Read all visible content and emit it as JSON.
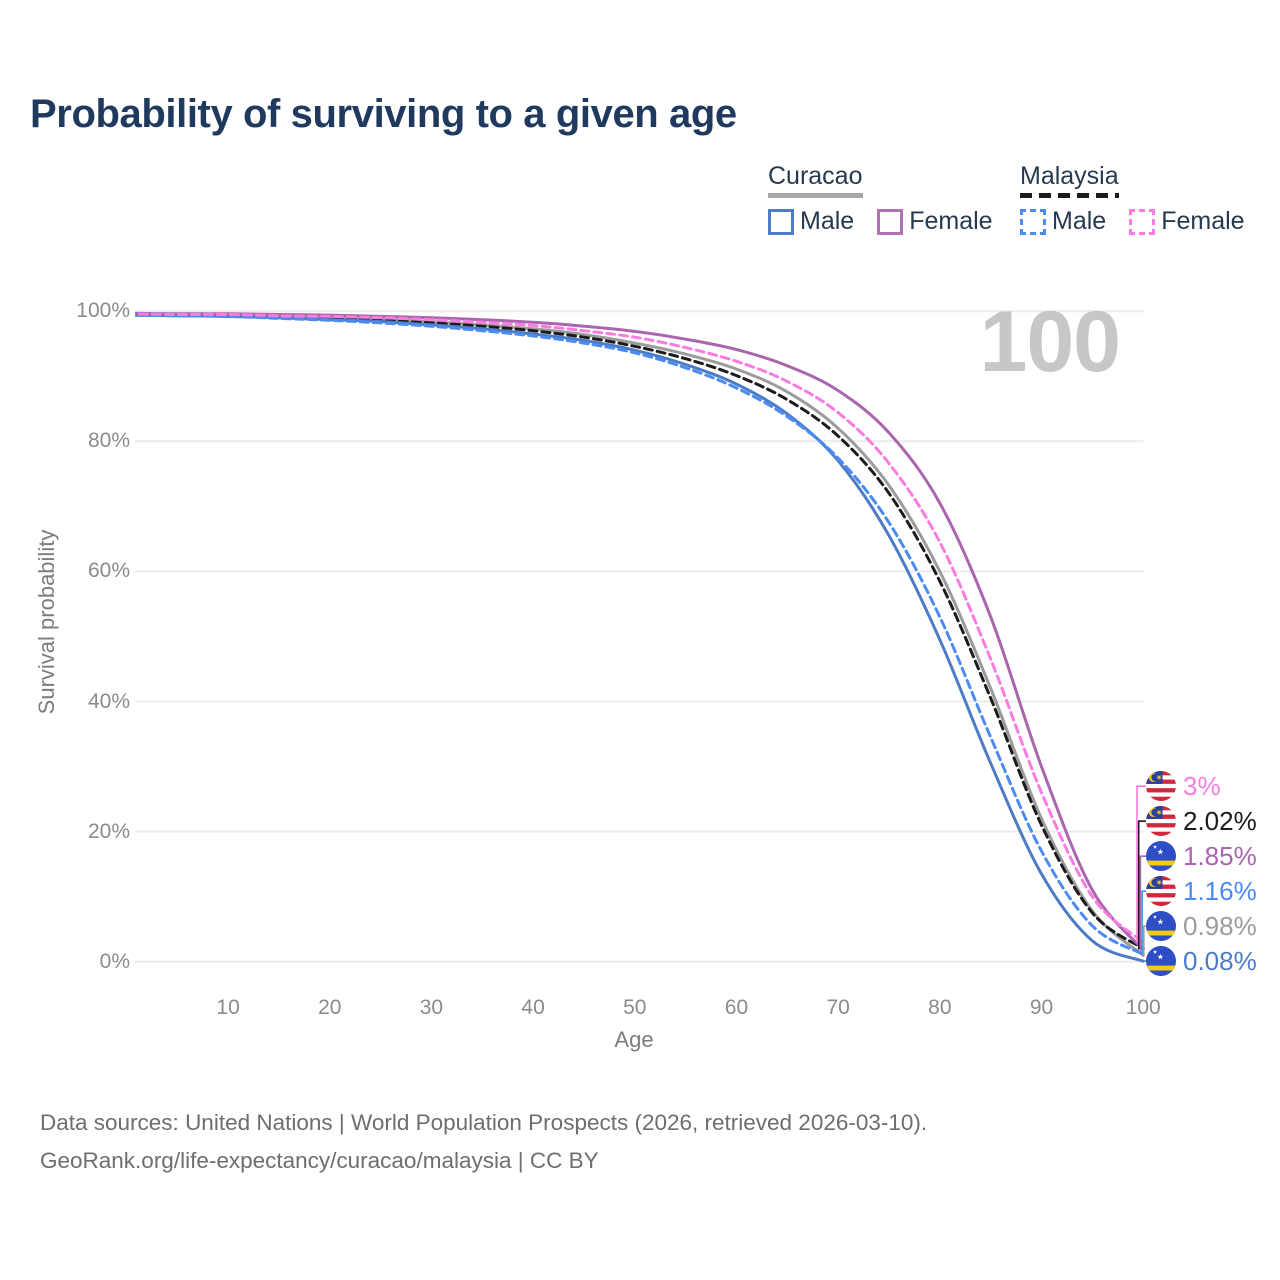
{
  "title": "Probability of surviving to a given age",
  "watermark": "100",
  "legend": {
    "position": "top-right",
    "groups": [
      {
        "name": "Curacao",
        "line_style": "solid",
        "underline_color": "#a8a8a8",
        "items": [
          {
            "label": "Male",
            "color": "#4d7cc7",
            "dashed": false
          },
          {
            "label": "Female",
            "color": "#b172b3",
            "dashed": false
          }
        ]
      },
      {
        "name": "Malaysia",
        "line_style": "dashed",
        "underline_color": "#1b1b1b",
        "items": [
          {
            "label": "Male",
            "color": "#4b8bf2",
            "dashed": true
          },
          {
            "label": "Female",
            "color": "#fb7ce1",
            "dashed": true
          }
        ]
      }
    ]
  },
  "chart_data": {
    "type": "line",
    "title": "Probability of surviving to a given age",
    "xlabel": "Age",
    "ylabel": "Survival probability",
    "xlim": [
      0,
      100
    ],
    "ylim": [
      0,
      100
    ],
    "grid": "horizontal",
    "x_ticks": [
      10,
      20,
      30,
      40,
      50,
      60,
      70,
      80,
      90,
      100
    ],
    "y_ticks": [
      {
        "value": 0,
        "label": "0%"
      },
      {
        "value": 20,
        "label": "20%"
      },
      {
        "value": 40,
        "label": "40%"
      },
      {
        "value": 60,
        "label": "60%"
      },
      {
        "value": 80,
        "label": "80%"
      },
      {
        "value": 100,
        "label": "100%"
      }
    ],
    "x": [
      0,
      5,
      10,
      15,
      20,
      25,
      30,
      35,
      40,
      45,
      50,
      55,
      60,
      65,
      70,
      75,
      80,
      85,
      90,
      95,
      100
    ],
    "series": [
      {
        "id": "curacao-both",
        "name": "Curacao Both sexes",
        "country": "Curacao",
        "sex": "both",
        "flag": "curacao",
        "color": "#9c9c9c",
        "dashed": false,
        "end_value": 0.98,
        "end_label": "0.98%",
        "values": [
          99.5,
          99.5,
          99.4,
          99.2,
          99.0,
          98.8,
          98.4,
          97.9,
          97.3,
          96.4,
          95.1,
          93.4,
          91.1,
          87.6,
          82.0,
          73.2,
          60.0,
          42.0,
          22.0,
          7.8,
          0.98
        ]
      },
      {
        "id": "malaysia-both",
        "name": "Malaysia Both sexes",
        "country": "Malaysia",
        "sex": "both",
        "flag": "malaysia",
        "color": "#1c1c1c",
        "dashed": true,
        "end_value": 2.02,
        "end_label": "2.02%",
        "values": [
          99.5,
          99.4,
          99.3,
          99.1,
          98.9,
          98.6,
          98.2,
          97.7,
          97.0,
          96.0,
          94.6,
          92.7,
          90.1,
          86.4,
          80.8,
          72.0,
          58.5,
          40.5,
          21.0,
          7.5,
          2.02
        ]
      },
      {
        "id": "curacao-male",
        "name": "Curacao Male",
        "country": "Curacao",
        "sex": "male",
        "flag": "curacao",
        "color": "#4d7cc7",
        "dashed": false,
        "end_value": 0.08,
        "end_label": "0.08%",
        "values": [
          99.4,
          99.3,
          99.2,
          99.0,
          98.7,
          98.4,
          97.9,
          97.3,
          96.5,
          95.5,
          94.0,
          91.8,
          88.8,
          84.2,
          77.0,
          65.5,
          49.5,
          30.5,
          13.5,
          3.2,
          0.08
        ]
      },
      {
        "id": "malaysia-male",
        "name": "Malaysia Male",
        "country": "Malaysia",
        "sex": "male",
        "flag": "malaysia",
        "color": "#4b8bf2",
        "dashed": true,
        "end_value": 1.16,
        "end_label": "1.16%",
        "values": [
          99.4,
          99.3,
          99.2,
          98.9,
          98.6,
          98.2,
          97.7,
          97.0,
          96.2,
          95.1,
          93.6,
          91.3,
          88.2,
          83.8,
          77.4,
          67.5,
          53.0,
          34.5,
          17.0,
          5.5,
          1.16
        ]
      },
      {
        "id": "curacao-female",
        "name": "Curacao Female",
        "country": "Curacao",
        "sex": "female",
        "flag": "curacao",
        "color": "#a965ae",
        "dashed": false,
        "end_value": 1.85,
        "end_label": "1.85%",
        "values": [
          99.7,
          99.6,
          99.6,
          99.5,
          99.4,
          99.2,
          99.0,
          98.7,
          98.3,
          97.7,
          96.9,
          95.7,
          94.1,
          91.6,
          87.8,
          81.3,
          70.5,
          53.0,
          30.0,
          11.0,
          1.85
        ]
      },
      {
        "id": "malaysia-female",
        "name": "Malaysia Female",
        "country": "Malaysia",
        "sex": "female",
        "flag": "malaysia",
        "color": "#fb7ce1",
        "dashed": true,
        "end_value": 3.0,
        "end_label": "3%",
        "values": [
          99.6,
          99.5,
          99.5,
          99.3,
          99.2,
          99.0,
          98.7,
          98.3,
          97.8,
          97.0,
          96.0,
          94.4,
          92.3,
          89.2,
          84.4,
          76.6,
          64.5,
          46.5,
          26.0,
          10.0,
          3.0
        ]
      }
    ]
  },
  "footer": {
    "line1": "Data sources: United Nations | World Population Prospects (2026, retrieved 2026-03-10).",
    "line2": "GeoRank.org/life-expectancy/curacao/malaysia | CC BY"
  }
}
